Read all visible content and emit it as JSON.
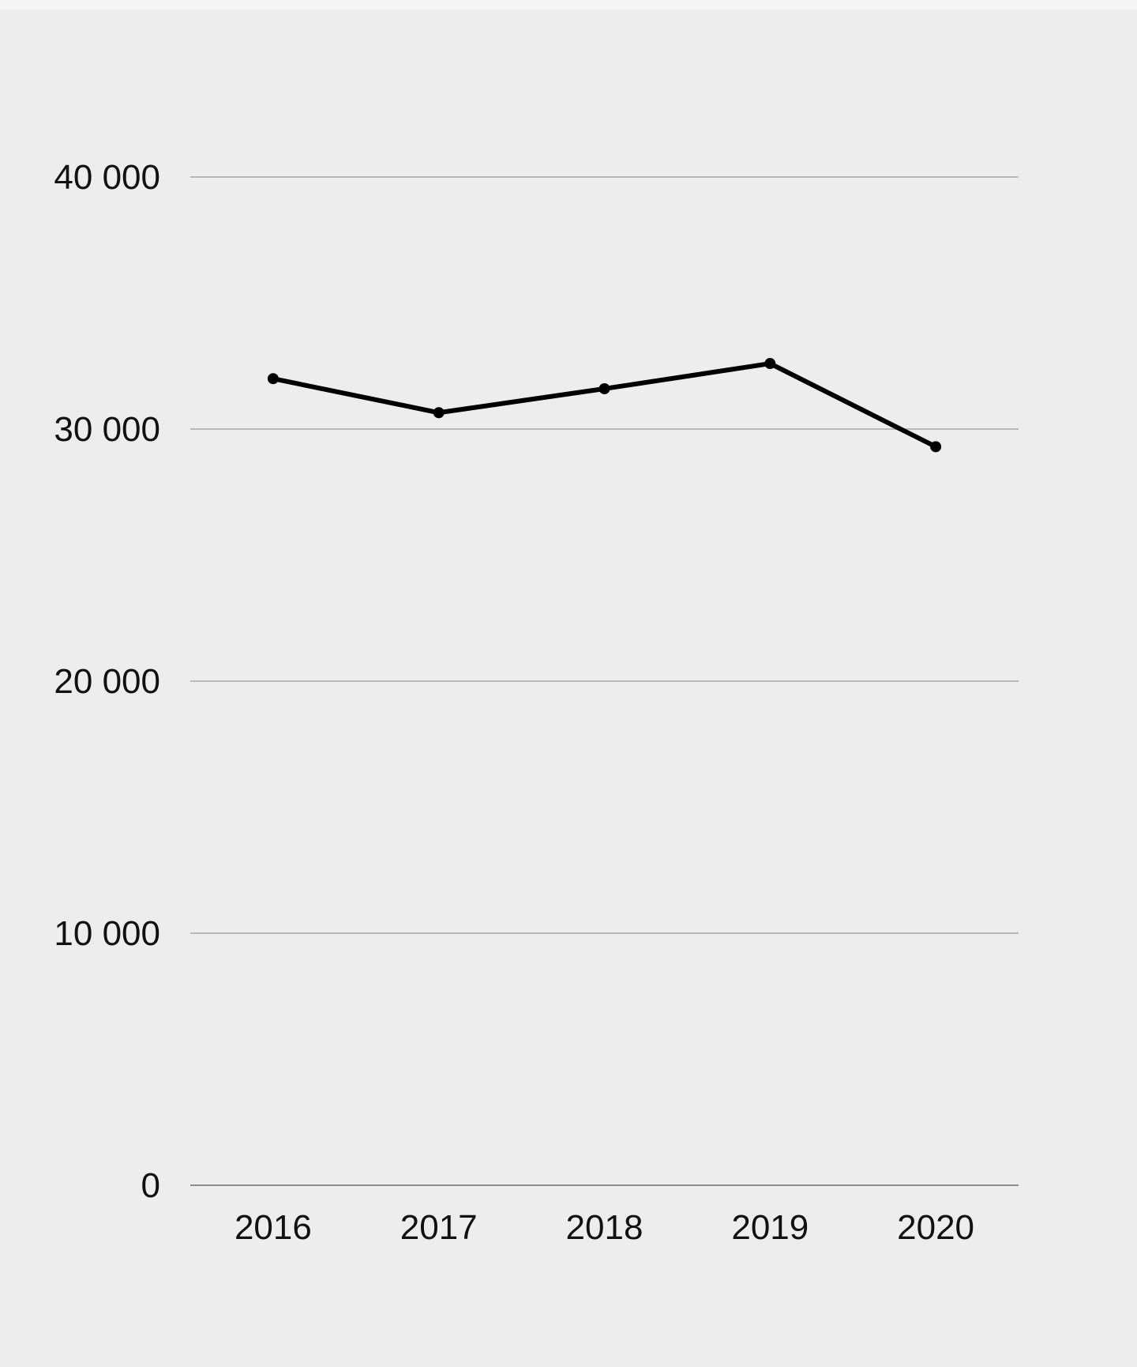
{
  "chart_data": {
    "type": "line",
    "title": "",
    "xlabel": "",
    "ylabel": "",
    "categories": [
      "2016",
      "2017",
      "2018",
      "2019",
      "2020"
    ],
    "series": [
      {
        "values": [
          32000,
          30650,
          31600,
          32600,
          29300
        ]
      }
    ],
    "ylim": [
      0,
      40000
    ],
    "yticks": [
      0,
      10000,
      20000,
      30000,
      40000
    ],
    "ytick_labels": [
      "0",
      "10 000",
      "20 000",
      "30 000",
      "40 000"
    ],
    "grid": true,
    "legend": "none",
    "colors": {
      "background": "#ededed",
      "line": "#000000",
      "grid": "#b8b8b8",
      "axis": "#6f6f6f"
    }
  }
}
